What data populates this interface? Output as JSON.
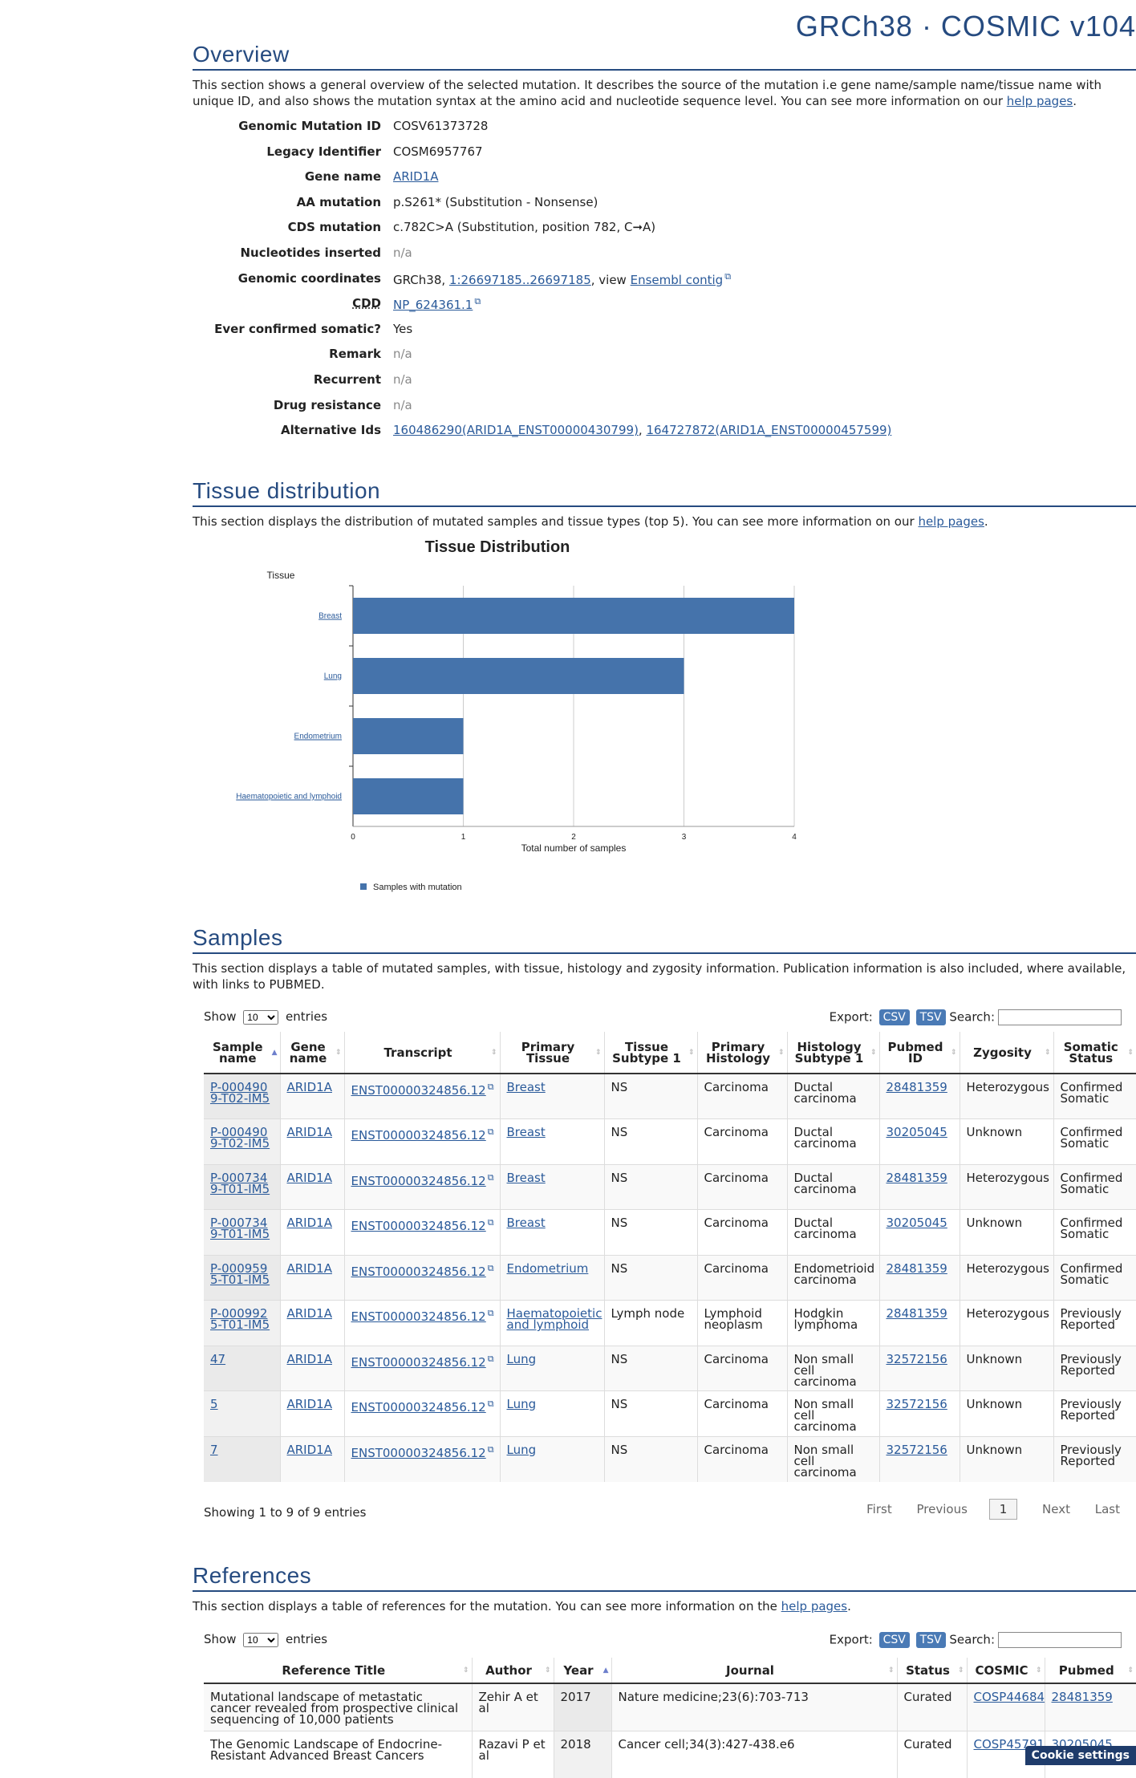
{
  "header": {
    "brand": "GRCh38 · COSMIC v104"
  },
  "overview": {
    "title": "Overview",
    "desc_prefix": "This section shows a general overview of the selected mutation. It describes the source of the mutation i.e gene name/sample name/tissue name with unique ID, and also shows the mutation syntax at the amino acid and nucleotide sequence level. You can see more information on our ",
    "desc_link": "help pages",
    "desc_suffix": ".",
    "fields": {
      "genomic_mutation_id": {
        "label": "Genomic Mutation ID",
        "value": "COSV61373728"
      },
      "legacy_identifier": {
        "label": "Legacy Identifier",
        "value": "COSM6957767"
      },
      "gene_name": {
        "label": "Gene name",
        "value": "ARID1A"
      },
      "aa_mutation": {
        "label": "AA mutation",
        "value": "p.S261* (Substitution - Nonsense)"
      },
      "cds_mutation": {
        "label": "CDS mutation",
        "value": "c.782C>A (Substitution, position 782, C➞A)"
      },
      "nucleotides_inserted": {
        "label": "Nucleotides inserted",
        "value": "n/a"
      },
      "genomic_coordinates": {
        "label": "Genomic coordinates",
        "prefix": "GRCh38, ",
        "link": "1:26697185..26697185",
        "mid": ", view ",
        "link2": "Ensembl contig"
      },
      "cdd": {
        "label": "CDD",
        "link": "NP_624361.1"
      },
      "ever_confirmed_somatic": {
        "label": "Ever confirmed somatic?",
        "value": "Yes"
      },
      "remark": {
        "label": "Remark",
        "value": "n/a"
      },
      "recurrent": {
        "label": "Recurrent",
        "value": "n/a"
      },
      "drug_resistance": {
        "label": "Drug resistance",
        "value": "n/a"
      },
      "alternative_ids": {
        "label": "Alternative Ids",
        "link1": "160486290(ARID1A_ENST00000430799)",
        "sep": ", ",
        "link2": "164727872(ARID1A_ENST00000457599)"
      }
    }
  },
  "tissue": {
    "title": "Tissue distribution",
    "desc_prefix": "This section displays the distribution of mutated samples and tissue types (top 5). You can see more information on our ",
    "desc_link": "help pages",
    "desc_suffix": "."
  },
  "chart_data": {
    "type": "bar",
    "orientation": "horizontal",
    "title": "Tissue Distribution",
    "category_axis_label": "Tissue",
    "xlabel": "Total number of samples",
    "categories": [
      "Breast",
      "Lung",
      "Endometrium",
      "Haematopoietic and lymphoid"
    ],
    "series": [
      {
        "name": "Samples with mutation",
        "values": [
          4,
          3,
          1,
          1
        ]
      }
    ],
    "xlim": [
      0,
      4
    ],
    "ticks": [
      0,
      1,
      2,
      3,
      4
    ],
    "grid": true,
    "legend": "bottom-left",
    "color": "#4573ab"
  },
  "samples": {
    "title": "Samples",
    "desc": "This section displays a table of mutated samples, with tissue, histology and zygosity information. Publication information is also included, where available, with links to PUBMED.",
    "show_label": "Show",
    "page_size": "10",
    "entries_label": "entries",
    "export_label": "Export:",
    "csv": "CSV",
    "tsv": "TSV",
    "search_label": "Search:",
    "columns": [
      "Sample name",
      "Gene name",
      "Transcript",
      "Primary Tissue",
      "Tissue Subtype 1",
      "Primary Histology",
      "Histology Subtype 1",
      "Pubmed ID",
      "Zygosity",
      "Somatic Status"
    ],
    "rows": [
      [
        "P-0004909-T02-IM5",
        "ARID1A",
        "ENST00000324856.12",
        "Breast",
        "NS",
        "Carcinoma",
        "Ductal carcinoma",
        "28481359",
        "Heterozygous",
        "Confirmed Somatic"
      ],
      [
        "P-0004909-T02-IM5",
        "ARID1A",
        "ENST00000324856.12",
        "Breast",
        "NS",
        "Carcinoma",
        "Ductal carcinoma",
        "30205045",
        "Unknown",
        "Confirmed Somatic"
      ],
      [
        "P-0007349-T01-IM5",
        "ARID1A",
        "ENST00000324856.12",
        "Breast",
        "NS",
        "Carcinoma",
        "Ductal carcinoma",
        "28481359",
        "Heterozygous",
        "Confirmed Somatic"
      ],
      [
        "P-0007349-T01-IM5",
        "ARID1A",
        "ENST00000324856.12",
        "Breast",
        "NS",
        "Carcinoma",
        "Ductal carcinoma",
        "30205045",
        "Unknown",
        "Confirmed Somatic"
      ],
      [
        "P-0009595-T01-IM5",
        "ARID1A",
        "ENST00000324856.12",
        "Endometrium",
        "NS",
        "Carcinoma",
        "Endometrioid carcinoma",
        "28481359",
        "Heterozygous",
        "Confirmed Somatic"
      ],
      [
        "P-0009925-T01-IM5",
        "ARID1A",
        "ENST00000324856.12",
        "Haematopoietic and lymphoid",
        "Lymph node",
        "Lymphoid neoplasm",
        "Hodgkin lymphoma",
        "28481359",
        "Heterozygous",
        "Previously Reported"
      ],
      [
        "47",
        "ARID1A",
        "ENST00000324856.12",
        "Lung",
        "NS",
        "Carcinoma",
        "Non small cell carcinoma",
        "32572156",
        "Unknown",
        "Previously Reported"
      ],
      [
        "5",
        "ARID1A",
        "ENST00000324856.12",
        "Lung",
        "NS",
        "Carcinoma",
        "Non small cell carcinoma",
        "32572156",
        "Unknown",
        "Previously Reported"
      ],
      [
        "7",
        "ARID1A",
        "ENST00000324856.12",
        "Lung",
        "NS",
        "Carcinoma",
        "Non small cell carcinoma",
        "32572156",
        "Unknown",
        "Previously Reported"
      ]
    ],
    "info": "Showing 1 to 9 of 9 entries",
    "pager": {
      "first": "First",
      "previous": "Previous",
      "current": "1",
      "next": "Next",
      "last": "Last"
    }
  },
  "references": {
    "title": "References",
    "desc_prefix": "This section displays a table of references for the mutation. You can see more information on the ",
    "desc_link": "help pages",
    "desc_suffix": ".",
    "show_label": "Show",
    "page_size": "10",
    "entries_label": "entries",
    "export_label": "Export:",
    "csv": "CSV",
    "tsv": "TSV",
    "search_label": "Search:",
    "columns": [
      "Reference Title",
      "Author",
      "Year",
      "Journal",
      "Status",
      "COSMIC",
      "Pubmed"
    ],
    "rows": [
      [
        "Mutational landscape of metastatic cancer revealed from prospective clinical sequencing of 10,000 patients",
        "Zehir A et al",
        "2017",
        "Nature medicine;23(6):703-713",
        "Curated",
        "COSP44684",
        "28481359"
      ],
      [
        "The Genomic Landscape of Endocrine-Resistant Advanced Breast Cancers",
        "Razavi P et al",
        "2018",
        "Cancer cell;34(3):427-438.e6",
        "Curated",
        "COSP45791",
        "30205045"
      ]
    ]
  },
  "cookie": {
    "label": "Cookie settings"
  }
}
